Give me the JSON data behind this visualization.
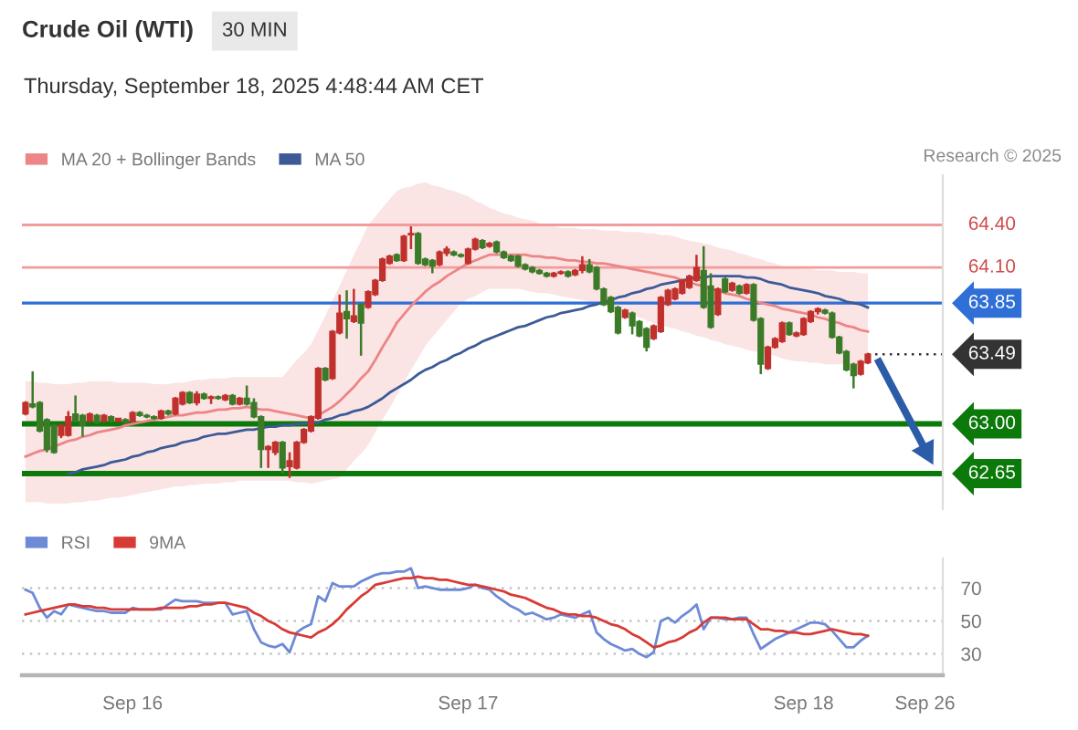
{
  "chart_data": [
    {
      "type": "candlestick",
      "title": "Crude Oil (WTI)",
      "subtitle": "Thursday, September 18, 2025 4:48:44 AM CET",
      "annotations": [
        "30 MIN",
        "Research © 2025",
        "63.49"
      ],
      "categories": [
        null,
        null,
        null,
        null,
        null,
        null,
        null,
        null,
        null,
        null,
        null,
        null,
        null,
        null,
        null,
        null,
        null,
        null,
        null,
        null,
        null,
        null,
        null,
        null,
        null,
        null,
        null,
        null,
        null,
        null,
        null,
        null,
        null,
        null,
        null,
        null,
        null,
        null,
        null,
        null,
        null,
        null,
        null,
        null,
        null,
        null,
        null,
        null,
        null,
        null,
        null,
        null,
        null,
        null,
        null,
        null,
        null,
        null,
        null,
        null,
        null,
        null,
        null,
        null,
        null,
        null,
        null,
        null,
        null,
        null,
        null,
        null,
        null,
        null,
        null,
        null,
        null,
        null,
        null,
        null,
        null,
        null,
        null,
        null,
        null,
        null,
        null,
        null,
        null,
        null,
        null,
        null,
        null,
        null,
        null,
        null,
        null,
        null,
        null,
        null,
        null,
        null,
        null,
        null,
        null,
        null,
        null,
        null,
        null,
        null,
        null,
        null,
        null,
        null,
        null,
        null,
        null,
        null,
        null,
        null,
        null,
        null,
        null,
        null,
        null,
        null,
        null,
        null,
        null
      ],
      "ohlc": [
        [
          63.07,
          63.16,
          63.06,
          63.15
        ],
        [
          63.14,
          63.37,
          63.11,
          63.12
        ],
        [
          63.15,
          63.16,
          62.94,
          62.95
        ],
        [
          63.03,
          63.04,
          62.8,
          62.82
        ],
        [
          62.99,
          63.0,
          62.79,
          62.8
        ],
        [
          62.92,
          63.0,
          62.9,
          62.99
        ],
        [
          62.92,
          63.09,
          62.91,
          63.05
        ],
        [
          63.07,
          63.2,
          63.01,
          63.02
        ],
        [
          63.06,
          63.07,
          62.91,
          62.99
        ],
        [
          63.02,
          63.08,
          63.01,
          63.07
        ],
        [
          63.06,
          63.07,
          63.0,
          63.01
        ],
        [
          63.02,
          63.07,
          63.01,
          63.06
        ],
        [
          63.05,
          63.06,
          63.01,
          63.02
        ],
        [
          63.02,
          63.04,
          63.01,
          63.04
        ],
        [
          63.03,
          63.04,
          63.0,
          63.01
        ],
        [
          63.02,
          63.09,
          63.01,
          63.08
        ],
        [
          63.08,
          63.09,
          63.05,
          63.06
        ],
        [
          63.06,
          63.07,
          63.04,
          63.05
        ],
        [
          63.05,
          63.06,
          63.03,
          63.04
        ],
        [
          63.04,
          63.1,
          63.03,
          63.09
        ],
        [
          63.09,
          63.1,
          63.06,
          63.07
        ],
        [
          63.07,
          63.19,
          63.06,
          63.18
        ],
        [
          63.14,
          63.23,
          63.13,
          63.22
        ],
        [
          63.22,
          63.23,
          63.14,
          63.15
        ],
        [
          63.15,
          63.23,
          63.13,
          63.21
        ],
        [
          63.21,
          63.22,
          63.17,
          63.18
        ],
        [
          63.18,
          63.2,
          63.14,
          63.19
        ],
        [
          63.19,
          63.2,
          63.17,
          63.18
        ],
        [
          63.17,
          63.21,
          63.16,
          63.2
        ],
        [
          63.2,
          63.21,
          63.13,
          63.14
        ],
        [
          63.14,
          63.19,
          63.13,
          63.18
        ],
        [
          63.18,
          63.27,
          63.13,
          63.14
        ],
        [
          63.15,
          63.18,
          63.04,
          63.05
        ],
        [
          63.05,
          63.06,
          62.69,
          62.82
        ],
        [
          62.82,
          62.85,
          62.69,
          62.84
        ],
        [
          62.8,
          62.88,
          62.78,
          62.87
        ],
        [
          62.87,
          62.88,
          62.65,
          62.69
        ],
        [
          62.7,
          62.8,
          62.62,
          62.74
        ],
        [
          62.69,
          62.88,
          62.68,
          62.87
        ],
        [
          62.87,
          62.97,
          62.86,
          62.96
        ],
        [
          62.95,
          63.06,
          62.94,
          63.05
        ],
        [
          63.04,
          63.4,
          63.03,
          63.39
        ],
        [
          63.39,
          63.4,
          63.3,
          63.31
        ],
        [
          63.32,
          63.66,
          63.31,
          63.65
        ],
        [
          63.64,
          63.91,
          63.63,
          63.78
        ],
        [
          63.79,
          63.94,
          63.6,
          63.74
        ],
        [
          63.72,
          63.95,
          63.71,
          63.76
        ],
        [
          63.84,
          63.85,
          63.48,
          63.71
        ],
        [
          63.82,
          63.94,
          63.81,
          63.93
        ],
        [
          63.91,
          64.02,
          63.9,
          64.01
        ],
        [
          64.01,
          64.17,
          64.0,
          64.16
        ],
        [
          64.13,
          64.19,
          64.12,
          64.18
        ],
        [
          64.19,
          64.2,
          64.14,
          64.15
        ],
        [
          64.15,
          64.33,
          64.14,
          64.32
        ],
        [
          64.33,
          64.39,
          64.23,
          64.34
        ],
        [
          64.34,
          64.35,
          64.12,
          64.13
        ],
        [
          64.16,
          64.17,
          64.11,
          64.12
        ],
        [
          64.15,
          64.16,
          64.06,
          64.11
        ],
        [
          64.12,
          64.22,
          64.11,
          64.21
        ],
        [
          64.2,
          64.25,
          64.18,
          64.23
        ],
        [
          64.21,
          64.22,
          64.18,
          64.19
        ],
        [
          64.19,
          64.2,
          64.17,
          64.18
        ],
        [
          64.13,
          64.24,
          64.12,
          64.23
        ],
        [
          64.23,
          64.31,
          64.22,
          64.3
        ],
        [
          64.29,
          64.3,
          64.23,
          64.24
        ],
        [
          64.25,
          64.28,
          64.24,
          64.27
        ],
        [
          64.28,
          64.29,
          64.2,
          64.21
        ],
        [
          64.21,
          64.22,
          64.16,
          64.17
        ],
        [
          64.18,
          64.19,
          64.14,
          64.15
        ],
        [
          64.18,
          64.19,
          64.1,
          64.11
        ],
        [
          64.12,
          64.13,
          64.08,
          64.09
        ],
        [
          64.1,
          64.11,
          64.06,
          64.07
        ],
        [
          64.08,
          64.09,
          64.05,
          64.06
        ],
        [
          64.06,
          64.07,
          64.03,
          64.04
        ],
        [
          64.04,
          64.07,
          64.03,
          64.06
        ],
        [
          64.06,
          64.08,
          64.05,
          64.07
        ],
        [
          64.07,
          64.08,
          64.03,
          64.04
        ],
        [
          64.05,
          64.09,
          64.04,
          64.08
        ],
        [
          64.08,
          64.18,
          64.06,
          64.12
        ],
        [
          64.12,
          64.16,
          64.06,
          64.07
        ],
        [
          64.1,
          64.11,
          63.94,
          63.95
        ],
        [
          63.95,
          63.96,
          63.83,
          63.84
        ],
        [
          63.89,
          63.9,
          63.78,
          63.79
        ],
        [
          63.82,
          63.83,
          63.63,
          63.64
        ],
        [
          63.75,
          63.81,
          63.74,
          63.8
        ],
        [
          63.78,
          63.79,
          63.63,
          63.69
        ],
        [
          63.72,
          63.73,
          63.61,
          63.62
        ],
        [
          63.67,
          63.68,
          63.51,
          63.54
        ],
        [
          63.6,
          63.7,
          63.59,
          63.69
        ],
        [
          63.65,
          63.9,
          63.64,
          63.89
        ],
        [
          63.84,
          63.95,
          63.83,
          63.94
        ],
        [
          63.88,
          63.96,
          63.87,
          63.95
        ],
        [
          63.92,
          64.02,
          63.91,
          64.01
        ],
        [
          63.96,
          64.05,
          63.95,
          64.04
        ],
        [
          64.01,
          64.19,
          64.0,
          64.1
        ],
        [
          64.08,
          64.25,
          63.81,
          63.82
        ],
        [
          63.97,
          64.06,
          63.67,
          63.68
        ],
        [
          63.77,
          63.96,
          63.76,
          63.95
        ],
        [
          64.02,
          64.03,
          63.92,
          63.93
        ],
        [
          63.94,
          64.0,
          63.93,
          63.99
        ],
        [
          63.97,
          63.98,
          63.91,
          63.92
        ],
        [
          63.92,
          63.99,
          63.91,
          63.98
        ],
        [
          63.98,
          63.99,
          63.72,
          63.73
        ],
        [
          63.74,
          63.75,
          63.35,
          63.42
        ],
        [
          63.39,
          63.55,
          63.38,
          63.54
        ],
        [
          63.54,
          63.61,
          63.53,
          63.6
        ],
        [
          63.58,
          63.72,
          63.57,
          63.71
        ],
        [
          63.71,
          63.72,
          63.62,
          63.63
        ],
        [
          63.62,
          63.65,
          63.61,
          63.64
        ],
        [
          63.63,
          63.75,
          63.62,
          63.74
        ],
        [
          63.72,
          63.8,
          63.71,
          63.79
        ],
        [
          63.79,
          63.82,
          63.77,
          63.81
        ],
        [
          63.8,
          63.81,
          63.77,
          63.78
        ],
        [
          63.78,
          63.79,
          63.6,
          63.61
        ],
        [
          63.61,
          63.62,
          63.49,
          63.5
        ],
        [
          63.51,
          63.52,
          63.37,
          63.38
        ],
        [
          63.42,
          63.43,
          63.25,
          63.34
        ],
        [
          63.35,
          63.45,
          63.34,
          63.44
        ],
        [
          63.43,
          63.5,
          63.42,
          63.49
        ],
        null,
        null,
        null,
        null,
        null,
        null,
        null,
        null,
        null,
        null
      ],
      "colors": [
        "#c0302c",
        "#3b7b28",
        "#3b7b28",
        "#3b7b28",
        "#3b7b28",
        "#c0302c",
        "#c0302c",
        "#3b7b28",
        "#3b7b28",
        "#c0302c",
        "#3b7b28",
        "#c0302c",
        "#3b7b28",
        "#c0302c",
        "#3b7b28",
        "#c0302c",
        "#3b7b28",
        "#3b7b28",
        "#3b7b28",
        "#c0302c",
        "#3b7b28",
        "#c0302c",
        "#c0302c",
        "#3b7b28",
        "#c0302c",
        "#3b7b28",
        "#c0302c",
        "#3b7b28",
        "#c0302c",
        "#3b7b28",
        "#c0302c",
        "#3b7b28",
        "#3b7b28",
        "#3b7b28",
        "#c0302c",
        "#c0302c",
        "#3b7b28",
        "#c0302c",
        "#c0302c",
        "#c0302c",
        "#c0302c",
        "#c0302c",
        "#3b7b28",
        "#c0302c",
        "#c0302c",
        "#3b7b28",
        "#c0302c",
        "#3b7b28",
        "#c0302c",
        "#c0302c",
        "#c0302c",
        "#c0302c",
        "#3b7b28",
        "#c0302c",
        "#c0302c",
        "#3b7b28",
        "#3b7b28",
        "#3b7b28",
        "#c0302c",
        "#c0302c",
        "#3b7b28",
        "#3b7b28",
        "#c0302c",
        "#c0302c",
        "#3b7b28",
        "#c0302c",
        "#3b7b28",
        "#3b7b28",
        "#3b7b28",
        "#3b7b28",
        "#3b7b28",
        "#3b7b28",
        "#3b7b28",
        "#3b7b28",
        "#c0302c",
        "#c0302c",
        "#3b7b28",
        "#c0302c",
        "#c0302c",
        "#3b7b28",
        "#3b7b28",
        "#3b7b28",
        "#3b7b28",
        "#3b7b28",
        "#c0302c",
        "#3b7b28",
        "#3b7b28",
        "#3b7b28",
        "#c0302c",
        "#c0302c",
        "#c0302c",
        "#c0302c",
        "#c0302c",
        "#c0302c",
        "#c0302c",
        "#3b7b28",
        "#3b7b28",
        "#c0302c",
        "#3b7b28",
        "#c0302c",
        "#3b7b28",
        "#c0302c",
        "#3b7b28",
        "#3b7b28",
        "#c0302c",
        "#c0302c",
        "#c0302c",
        "#3b7b28",
        "#c0302c",
        "#c0302c",
        "#c0302c",
        "#c0302c",
        "#3b7b28",
        "#3b7b28",
        "#3b7b28",
        "#3b7b28",
        "#3b7b28",
        "#c0302c",
        "#c0302c",
        null,
        null,
        null,
        null,
        null,
        null,
        null,
        null,
        null,
        null
      ],
      "series": [
        {
          "name": "MA 20 + Bollinger Bands",
          "type": "line",
          "color": "#ec8585",
          "values": [
            62.77,
            62.79,
            62.81,
            62.82,
            62.84,
            62.86,
            62.88,
            62.89,
            62.91,
            62.92,
            62.94,
            62.95,
            62.96,
            62.97,
            62.99,
            63.0,
            63.01,
            63.02,
            63.03,
            63.04,
            63.05,
            63.06,
            63.06,
            63.07,
            63.08,
            63.08,
            63.09,
            63.1,
            63.1,
            63.11,
            63.11,
            63.12,
            63.11,
            63.1,
            63.1,
            63.09,
            63.08,
            63.07,
            63.06,
            63.05,
            63.04,
            63.06,
            63.09,
            63.12,
            63.16,
            63.21,
            63.26,
            63.32,
            63.37,
            63.45,
            63.54,
            63.62,
            63.71,
            63.77,
            63.83,
            63.88,
            63.93,
            63.97,
            64.0,
            64.04,
            64.07,
            64.1,
            64.13,
            64.15,
            64.17,
            64.19,
            64.19,
            64.19,
            64.19,
            64.19,
            64.19,
            64.18,
            64.18,
            64.17,
            64.17,
            64.16,
            64.15,
            64.15,
            64.14,
            64.14,
            64.13,
            64.13,
            64.12,
            64.11,
            64.1,
            64.09,
            64.08,
            64.07,
            64.06,
            64.05,
            64.04,
            64.03,
            64.01,
            64.0,
            63.98,
            63.97,
            63.95,
            63.94,
            63.92,
            63.91,
            63.9,
            63.88,
            63.87,
            63.85,
            63.84,
            63.83,
            63.81,
            63.8,
            63.79,
            63.78,
            63.77,
            63.75,
            63.74,
            63.72,
            63.71,
            63.69,
            63.68,
            63.66,
            63.65,
            null,
            null,
            null,
            null,
            null,
            null,
            null,
            null,
            null,
            null
          ],
          "lower": [
            62.45,
            62.45,
            62.45,
            62.44,
            62.44,
            62.44,
            62.44,
            62.45,
            62.45,
            62.46,
            62.46,
            62.47,
            62.48,
            62.48,
            62.49,
            62.5,
            62.51,
            62.52,
            62.53,
            62.54,
            62.55,
            62.56,
            62.56,
            62.57,
            62.57,
            62.58,
            62.58,
            62.58,
            62.59,
            62.59,
            62.6,
            62.6,
            62.6,
            62.6,
            62.6,
            62.6,
            62.6,
            62.6,
            62.59,
            62.59,
            62.58,
            62.59,
            62.6,
            62.61,
            62.62,
            62.68,
            62.74,
            62.79,
            62.85,
            62.94,
            63.03,
            63.11,
            63.2,
            63.29,
            63.38,
            63.46,
            63.55,
            63.61,
            63.67,
            63.73,
            63.79,
            63.85,
            63.88,
            63.9,
            63.93,
            63.95,
            63.95,
            63.95,
            63.95,
            63.95,
            63.94,
            63.93,
            63.92,
            63.92,
            63.91,
            63.9,
            63.89,
            63.88,
            63.87,
            63.86,
            63.85,
            63.83,
            63.82,
            63.8,
            63.78,
            63.76,
            63.75,
            63.73,
            63.71,
            63.7,
            63.68,
            63.67,
            63.65,
            63.64,
            63.62,
            63.61,
            63.59,
            63.58,
            63.56,
            63.55,
            63.54,
            63.52,
            63.51,
            63.5,
            63.49,
            63.48,
            63.46,
            63.45,
            63.44,
            63.44,
            63.43,
            63.43,
            63.42,
            63.42,
            63.42,
            63.42,
            63.42,
            63.42,
            63.42,
            null,
            null,
            null,
            null,
            null,
            null,
            null,
            null,
            null,
            null
          ],
          "upper": [
            63.3,
            63.3,
            63.29,
            63.29,
            63.28,
            63.28,
            63.28,
            63.29,
            63.29,
            63.3,
            63.3,
            63.3,
            63.3,
            63.29,
            63.29,
            63.29,
            63.29,
            63.29,
            63.28,
            63.28,
            63.28,
            63.29,
            63.29,
            63.3,
            63.31,
            63.31,
            63.32,
            63.32,
            63.32,
            63.33,
            63.33,
            63.33,
            63.33,
            63.33,
            63.33,
            63.33,
            63.33,
            63.39,
            63.45,
            63.5,
            63.56,
            63.66,
            63.76,
            63.87,
            63.97,
            64.08,
            64.19,
            64.29,
            64.4,
            64.46,
            64.52,
            64.58,
            64.64,
            64.66,
            64.67,
            64.69,
            64.7,
            64.68,
            64.67,
            64.65,
            64.64,
            64.62,
            64.6,
            64.57,
            64.55,
            64.52,
            64.5,
            64.48,
            64.47,
            64.45,
            64.44,
            64.43,
            64.41,
            64.4,
            64.39,
            64.38,
            64.38,
            64.38,
            64.37,
            64.37,
            64.37,
            64.36,
            64.36,
            64.36,
            64.35,
            64.35,
            64.35,
            64.34,
            64.34,
            64.33,
            64.33,
            64.32,
            64.3,
            64.29,
            64.28,
            64.27,
            64.26,
            64.24,
            64.23,
            64.22,
            64.2,
            64.19,
            64.17,
            64.16,
            64.14,
            64.13,
            64.11,
            64.1,
            64.1,
            64.09,
            64.09,
            64.08,
            64.08,
            64.08,
            64.07,
            64.07,
            64.07,
            64.06,
            64.06,
            null,
            null,
            null,
            null,
            null,
            null,
            null,
            null,
            null,
            null
          ]
        },
        {
          "name": "MA 50",
          "type": "line",
          "color": "#3c5a98",
          "values": [
            null,
            null,
            null,
            null,
            null,
            null,
            62.65,
            62.66,
            62.68,
            62.69,
            62.7,
            62.71,
            62.73,
            62.74,
            62.75,
            62.77,
            62.78,
            62.8,
            62.81,
            62.83,
            62.84,
            62.85,
            62.87,
            62.88,
            62.89,
            62.91,
            62.92,
            62.93,
            62.93,
            62.94,
            62.95,
            62.96,
            62.96,
            62.97,
            62.98,
            62.98,
            62.99,
            62.99,
            63.0,
            63.0,
            63.01,
            63.01,
            63.03,
            63.04,
            63.06,
            63.07,
            63.09,
            63.1,
            63.12,
            63.15,
            63.18,
            63.22,
            63.25,
            63.28,
            63.31,
            63.35,
            63.38,
            63.4,
            63.43,
            63.45,
            63.48,
            63.5,
            63.53,
            63.55,
            63.58,
            63.6,
            63.62,
            63.64,
            63.66,
            63.68,
            63.69,
            63.71,
            63.73,
            63.75,
            63.76,
            63.78,
            63.79,
            63.8,
            63.81,
            63.83,
            63.84,
            63.86,
            63.87,
            63.89,
            63.9,
            63.92,
            63.93,
            63.95,
            63.96,
            63.98,
            63.99,
            64.0,
            64.01,
            64.02,
            64.03,
            64.03,
            64.04,
            64.04,
            64.04,
            64.04,
            64.04,
            64.03,
            64.03,
            64.02,
            64.0,
            63.99,
            63.98,
            63.96,
            63.95,
            63.94,
            63.93,
            63.92,
            63.9,
            63.89,
            63.88,
            63.86,
            63.85,
            63.84,
            63.82,
            null,
            null,
            null,
            null,
            null,
            null,
            null,
            null,
            null,
            null
          ]
        }
      ],
      "ref_lines": [
        {
          "axis": "y",
          "value": 64.4,
          "label": "64.40",
          "color": "#f29b9b"
        },
        {
          "axis": "y",
          "value": 64.1,
          "label": "64.10",
          "color": "#f29b9b"
        },
        {
          "axis": "y",
          "value": 63.85,
          "label": "63.85",
          "color": "#2f6fd6"
        },
        {
          "axis": "y",
          "value": 63.0,
          "label": "63.00",
          "color": "#0b7a0b"
        },
        {
          "axis": "y",
          "value": 62.65,
          "label": "62.65",
          "color": "#0b7a0b"
        }
      ],
      "ylim": [
        62.4,
        64.75
      ],
      "tick_labels": false,
      "legend": "top left"
    },
    {
      "type": "line",
      "categories": [
        null,
        null,
        null,
        null,
        null,
        null,
        null,
        null,
        null,
        null,
        null,
        null,
        null,
        null,
        null,
        "Sep 16",
        null,
        null,
        null,
        null,
        null,
        null,
        null,
        null,
        null,
        null,
        null,
        null,
        null,
        null,
        null,
        null,
        null,
        null,
        null,
        null,
        null,
        null,
        null,
        null,
        null,
        null,
        null,
        null,
        null,
        null,
        null,
        null,
        null,
        null,
        null,
        null,
        null,
        null,
        null,
        null,
        null,
        null,
        null,
        null,
        null,
        null,
        "Sep 17",
        null,
        null,
        null,
        null,
        null,
        null,
        null,
        null,
        null,
        null,
        null,
        null,
        null,
        null,
        null,
        null,
        null,
        null,
        null,
        null,
        null,
        null,
        null,
        null,
        null,
        null,
        null,
        null,
        null,
        null,
        null,
        null,
        null,
        null,
        null,
        null,
        null,
        null,
        null,
        null,
        null,
        null,
        null,
        null,
        null,
        null,
        "Sep 18",
        null,
        null,
        null,
        null,
        null,
        null,
        null,
        null,
        null,
        null,
        null,
        null,
        null,
        null,
        null,
        null,
        "Sep 26",
        null,
        null
      ],
      "series": [
        {
          "name": "RSI",
          "color": "#6d8ad6",
          "values": [
            69,
            67,
            58,
            52,
            56,
            54,
            60,
            59,
            58,
            57,
            56,
            56,
            55,
            55,
            55,
            58,
            57,
            57,
            57,
            57,
            60,
            63,
            62,
            62,
            62,
            61,
            61,
            61,
            61,
            54,
            55,
            56,
            45,
            37,
            35,
            34,
            36,
            31,
            43,
            46,
            48,
            65,
            62,
            73,
            71,
            71,
            71,
            74,
            76,
            78,
            79,
            79,
            80,
            80,
            82,
            70,
            71,
            70,
            69,
            69,
            69,
            69,
            70,
            72,
            70,
            69,
            65,
            62,
            59,
            57,
            54,
            55,
            53,
            51,
            52,
            54,
            53,
            52,
            54,
            56,
            43,
            39,
            36,
            34,
            32,
            33,
            30,
            28,
            31,
            50,
            52,
            49,
            53,
            56,
            60,
            45,
            52,
            52,
            51,
            51,
            52,
            52,
            42,
            33,
            36,
            39,
            41,
            43,
            45,
            47,
            49,
            49,
            48,
            44,
            39,
            34,
            34,
            38,
            41,
            null,
            null,
            null,
            null,
            null,
            null,
            null,
            null,
            null,
            null
          ]
        },
        {
          "name": "9MA",
          "color": "#d83a35",
          "values": [
            54,
            55,
            56,
            57,
            58,
            59,
            60,
            60,
            59,
            59,
            58,
            58,
            57,
            57,
            57,
            57,
            57,
            57,
            57,
            58,
            58,
            58,
            58,
            59,
            59,
            60,
            60,
            61,
            61,
            60,
            59,
            58,
            55,
            53,
            50,
            48,
            45,
            43,
            42,
            41,
            40,
            43,
            45,
            48,
            52,
            57,
            61,
            65,
            68,
            72,
            73,
            74,
            75,
            76,
            76,
            77,
            76,
            76,
            75,
            75,
            74,
            73,
            72,
            72,
            71,
            70,
            69,
            68,
            66,
            65,
            64,
            62,
            60,
            58,
            57,
            55,
            54,
            54,
            53,
            53,
            52,
            50,
            48,
            47,
            45,
            42,
            40,
            37,
            34,
            35,
            37,
            38,
            40,
            43,
            45,
            49,
            52,
            52,
            52,
            51,
            51,
            51,
            48,
            45,
            45,
            44,
            44,
            43,
            43,
            42,
            42,
            43,
            44,
            45,
            44,
            43,
            42,
            42,
            41,
            null,
            null,
            null,
            null,
            null,
            null,
            null,
            null,
            null,
            null
          ]
        }
      ],
      "ylim": [
        17,
        88
      ],
      "yticks": [
        30,
        50,
        70
      ],
      "grid": "y",
      "legend": "top left"
    }
  ]
}
